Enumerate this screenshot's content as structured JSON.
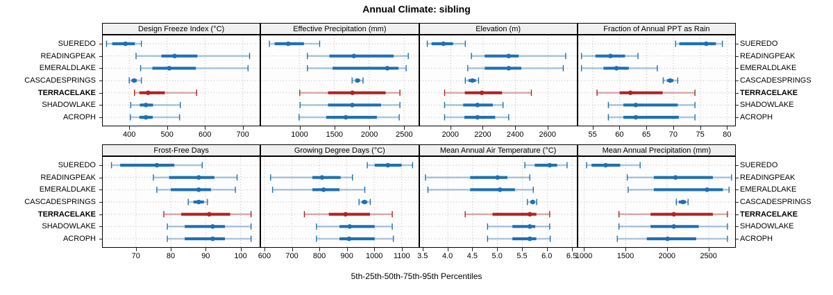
{
  "title": "Annual Climate: sibling",
  "caption": "5th-25th-50th-75th-95th Percentiles",
  "sites": [
    "SUEREDO",
    "READINGPEAK",
    "EMERALDLAKE",
    "CASCADESPRINGS",
    "TERRACELAKE",
    "SHADOWLAKE",
    "ACROPH"
  ],
  "highlight_site": "TERRACELAKE",
  "colors": {
    "series_blue": "#1F6FB4",
    "series_red": "#B22222",
    "gridline": "#BBBBBB",
    "strip_bg": "#F0F0F0",
    "panel_border": "#000000"
  },
  "chart_data": [
    {
      "type": "dotplot-percentiles",
      "title": "Design Freeze Index (°C)",
      "xlim": [
        330,
        745
      ],
      "tick_values": [
        400,
        500,
        600,
        700
      ],
      "tick_labels": [
        "400",
        "500",
        "600",
        "700"
      ],
      "percentiles": [
        "5th",
        "25th",
        "50th",
        "75th",
        "95th"
      ],
      "series": [
        {
          "name": "SUEREDO",
          "values": [
            340,
            355,
            390,
            415,
            432
          ]
        },
        {
          "name": "READINGPEAK",
          "values": [
            418,
            485,
            520,
            580,
            718
          ]
        },
        {
          "name": "EMERALDLAKE",
          "values": [
            430,
            461,
            506,
            576,
            714
          ]
        },
        {
          "name": "CASCADESPRINGS",
          "values": [
            400,
            406,
            413,
            420,
            432
          ]
        },
        {
          "name": "TERRACELAKE",
          "values": [
            414,
            427,
            450,
            494,
            578
          ]
        },
        {
          "name": "SHADOWLAKE",
          "values": [
            404,
            428,
            444,
            463,
            535
          ]
        },
        {
          "name": "ACROPH",
          "values": [
            403,
            427,
            444,
            462,
            533
          ]
        }
      ]
    },
    {
      "type": "dotplot-percentiles",
      "title": "Effective Precipitation (mm)",
      "xlim": [
        450,
        2700
      ],
      "tick_values": [
        1000,
        1500,
        2000,
        2500
      ],
      "tick_labels": [
        "1000",
        "1500",
        "2000",
        "2500"
      ],
      "percentiles": [
        "5th",
        "25th",
        "50th",
        "75th",
        "95th"
      ],
      "series": [
        {
          "name": "SUEREDO",
          "values": [
            570,
            645,
            840,
            1065,
            1290
          ]
        },
        {
          "name": "READINGPEAK",
          "values": [
            1115,
            1430,
            1780,
            2350,
            2560
          ]
        },
        {
          "name": "EMERALDLAKE",
          "values": [
            1115,
            1475,
            2260,
            2420,
            2530
          ]
        },
        {
          "name": "CASCADESPRINGS",
          "values": [
            1755,
            1800,
            1832,
            1868,
            1912
          ]
        },
        {
          "name": "TERRACELAKE",
          "values": [
            1005,
            1410,
            1760,
            2235,
            2440
          ]
        },
        {
          "name": "SHADOWLAKE",
          "values": [
            1010,
            1410,
            1758,
            2170,
            2440
          ]
        },
        {
          "name": "ACROPH",
          "values": [
            995,
            1385,
            1665,
            2110,
            2430
          ]
        }
      ]
    },
    {
      "type": "dotplot-percentiles",
      "title": "Elevation (m)",
      "xlim": [
        1810,
        2780
      ],
      "tick_values": [
        2000,
        2200,
        2400,
        2600
      ],
      "tick_labels": [
        "2000",
        "2200",
        "2400",
        "2600"
      ],
      "percentiles": [
        "5th",
        "25th",
        "50th",
        "75th",
        "95th"
      ],
      "series": [
        {
          "name": "SUEREDO",
          "values": [
            1855,
            1882,
            1955,
            2014,
            2090
          ]
        },
        {
          "name": "READINGPEAK",
          "values": [
            2128,
            2210,
            2358,
            2420,
            2710
          ]
        },
        {
          "name": "EMERALDLAKE",
          "values": [
            2105,
            2210,
            2358,
            2436,
            2695
          ]
        },
        {
          "name": "CASCADESPRINGS",
          "values": [
            2090,
            2110,
            2134,
            2155,
            2172
          ]
        },
        {
          "name": "TERRACELAKE",
          "values": [
            1962,
            2087,
            2192,
            2317,
            2498
          ]
        },
        {
          "name": "SHADOWLAKE",
          "values": [
            1962,
            2077,
            2165,
            2260,
            2323
          ]
        },
        {
          "name": "ACROPH",
          "values": [
            1962,
            2084,
            2165,
            2274,
            2358
          ]
        }
      ]
    },
    {
      "type": "dotplot-percentiles",
      "title": "Fraction of Annual PPT as Rain",
      "xlim": [
        52.3,
        81.5
      ],
      "tick_values": [
        55,
        60,
        65,
        70,
        75,
        80
      ],
      "tick_labels": [
        "55",
        "60",
        "65",
        "70",
        "75",
        "80"
      ],
      "percentiles": [
        "5th",
        "25th",
        "50th",
        "75th",
        "95th"
      ],
      "series": [
        {
          "name": "SUEREDO",
          "values": [
            70.4,
            71.1,
            76.1,
            77.9,
            79.1
          ]
        },
        {
          "name": "READINGPEAK",
          "values": [
            52.9,
            55.5,
            58.3,
            61.0,
            63.4
          ]
        },
        {
          "name": "EMERALDLAKE",
          "values": [
            52.9,
            57.0,
            59.4,
            61.7,
            67.0
          ]
        },
        {
          "name": "CASCADESPRINGS",
          "values": [
            68.1,
            68.8,
            69.4,
            70.0,
            70.8
          ]
        },
        {
          "name": "TERRACELAKE",
          "values": [
            55.8,
            60.0,
            62.0,
            68.0,
            74.0
          ]
        },
        {
          "name": "SHADOWLAKE",
          "values": [
            57.9,
            60.7,
            63.0,
            70.8,
            74.0
          ]
        },
        {
          "name": "ACROPH",
          "values": [
            57.9,
            60.7,
            63.0,
            71.0,
            74.0
          ]
        }
      ]
    },
    {
      "type": "dotplot-percentiles",
      "title": "Frost-Free Days",
      "xlim": [
        60.5,
        105.5
      ],
      "tick_values": [
        70,
        80,
        90,
        100
      ],
      "tick_labels": [
        "70",
        "80",
        "90",
        "100"
      ],
      "percentiles": [
        "5th",
        "25th",
        "50th",
        "75th",
        "95th"
      ],
      "series": [
        {
          "name": "SUEREDO",
          "values": [
            63,
            65.5,
            76,
            81,
            89
          ]
        },
        {
          "name": "READINGPEAK",
          "values": [
            75,
            79.5,
            88,
            92.5,
            99
          ]
        },
        {
          "name": "EMERALDLAKE",
          "values": [
            76,
            80,
            88,
            91.5,
            98.5
          ]
        },
        {
          "name": "CASCADESPRINGS",
          "values": [
            85,
            86.5,
            88,
            89.5,
            90.5
          ]
        },
        {
          "name": "TERRACELAKE",
          "values": [
            78,
            83,
            91,
            97,
            103
          ]
        },
        {
          "name": "SHADOWLAKE",
          "values": [
            79,
            84,
            92,
            95.5,
            103
          ]
        },
        {
          "name": "ACROPH",
          "values": [
            79,
            84,
            92,
            95.5,
            103
          ]
        }
      ]
    },
    {
      "type": "dotplot-percentiles",
      "title": "Growing Degree Days (°C)",
      "xlim": [
        588,
        1160
      ],
      "tick_values": [
        600,
        700,
        800,
        900,
        1000,
        1100
      ],
      "tick_labels": [
        "600",
        "700",
        "800",
        "900",
        "1000",
        "1100"
      ],
      "percentiles": [
        "5th",
        "25th",
        "50th",
        "75th",
        "95th"
      ],
      "series": [
        {
          "name": "SUEREDO",
          "values": [
            975,
            1002,
            1050,
            1100,
            1140
          ]
        },
        {
          "name": "READINGPEAK",
          "values": [
            623,
            775,
            810,
            878,
            921
          ]
        },
        {
          "name": "EMERALDLAKE",
          "values": [
            630,
            775,
            816,
            874,
            966
          ]
        },
        {
          "name": "CASCADESPRINGS",
          "values": [
            945,
            955,
            965,
            975,
            986
          ]
        },
        {
          "name": "TERRACELAKE",
          "values": [
            746,
            835,
            896,
            985,
            1066
          ]
        },
        {
          "name": "SHADOWLAKE",
          "values": [
            790,
            874,
            911,
            1002,
            1066
          ]
        },
        {
          "name": "ACROPH",
          "values": [
            790,
            874,
            909,
            1002,
            1070
          ]
        }
      ]
    },
    {
      "type": "dotplot-percentiles",
      "title": "Mean Annual Air Temperature (°C)",
      "xlim": [
        3.44,
        6.6
      ],
      "tick_values": [
        3.5,
        4.0,
        4.5,
        5.0,
        5.5,
        6.0,
        6.5
      ],
      "tick_labels": [
        "3.5",
        "4.0",
        "4.5",
        "5.0",
        "5.5",
        "6.0",
        "6.5"
      ],
      "percentiles": [
        "5th",
        "25th",
        "50th",
        "75th",
        "95th"
      ],
      "series": [
        {
          "name": "SUEREDO",
          "values": [
            5.55,
            5.75,
            6.05,
            6.2,
            6.4
          ]
        },
        {
          "name": "READINGPEAK",
          "values": [
            3.55,
            4.45,
            5.0,
            5.2,
            5.65
          ]
        },
        {
          "name": "EMERALDLAKE",
          "values": [
            3.6,
            4.45,
            5.05,
            5.35,
            5.72
          ]
        },
        {
          "name": "CASCADESPRINGS",
          "values": [
            5.6,
            5.66,
            5.71,
            5.75,
            5.79
          ]
        },
        {
          "name": "TERRACELAKE",
          "values": [
            4.35,
            4.9,
            5.65,
            5.78,
            6.05
          ]
        },
        {
          "name": "SHADOWLAKE",
          "values": [
            4.8,
            5.3,
            5.65,
            5.76,
            6.05
          ]
        },
        {
          "name": "ACROPH",
          "values": [
            4.8,
            5.3,
            5.65,
            5.78,
            6.06
          ]
        }
      ]
    },
    {
      "type": "dotplot-percentiles",
      "title": "Mean Annual Precipitation (mm)",
      "xlim": [
        930,
        2820
      ],
      "tick_values": [
        1000,
        1500,
        2000,
        2500
      ],
      "tick_labels": [
        "1000",
        "1500",
        "2000",
        "2500"
      ],
      "percentiles": [
        "5th",
        "25th",
        "50th",
        "75th",
        "95th"
      ],
      "series": [
        {
          "name": "SUEREDO",
          "values": [
            1030,
            1090,
            1260,
            1435,
            1675
          ]
        },
        {
          "name": "READINGPEAK",
          "values": [
            1520,
            1840,
            2100,
            2550,
            2775
          ]
        },
        {
          "name": "EMERALDLAKE",
          "values": [
            1530,
            1840,
            2480,
            2670,
            2745
          ]
        },
        {
          "name": "CASCADESPRINGS",
          "values": [
            2110,
            2142,
            2190,
            2226,
            2252
          ]
        },
        {
          "name": "TERRACELAKE",
          "values": [
            1420,
            1800,
            2080,
            2550,
            2725
          ]
        },
        {
          "name": "SHADOWLAKE",
          "values": [
            1420,
            1800,
            2080,
            2380,
            2725
          ]
        },
        {
          "name": "ACROPH",
          "values": [
            1400,
            1755,
            2005,
            2350,
            2725
          ]
        }
      ]
    }
  ]
}
